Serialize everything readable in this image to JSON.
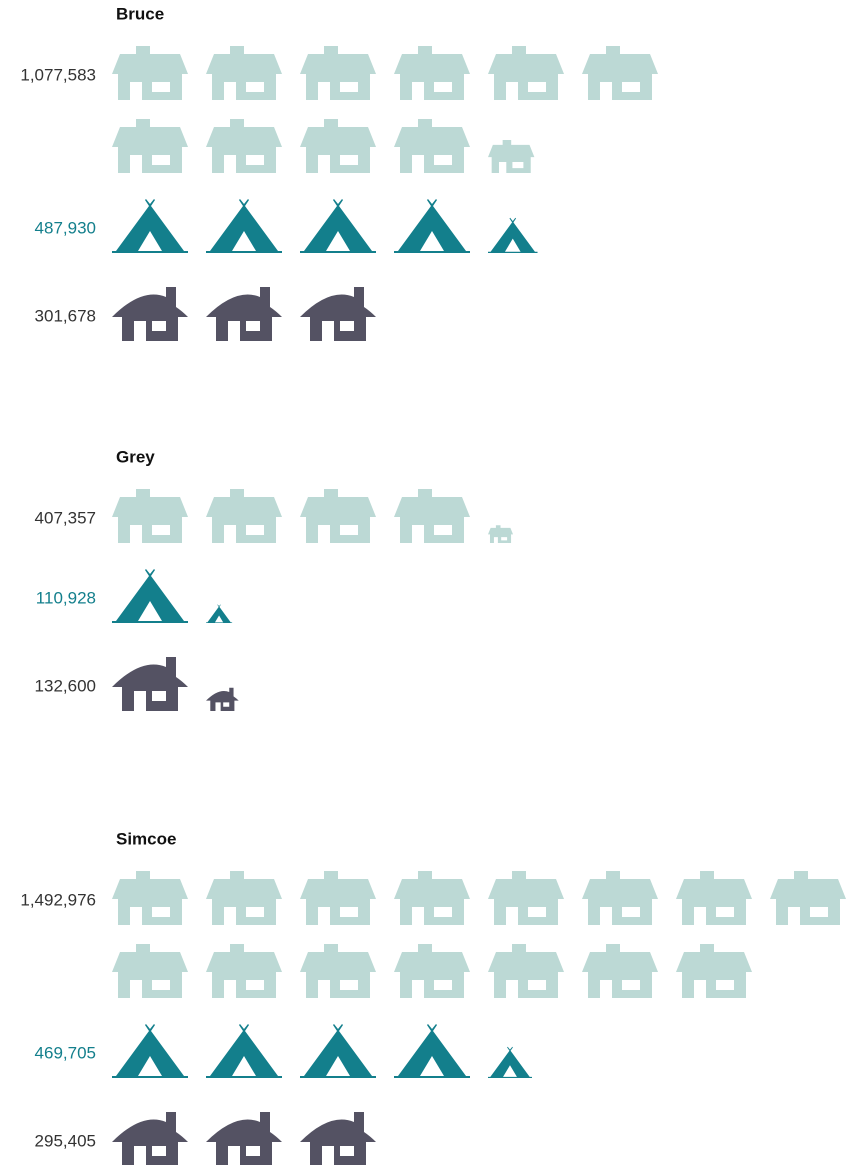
{
  "chart_data": [
    {
      "type": "pictogram",
      "title": "Bruce",
      "values": [
        1077583,
        487930,
        301678
      ],
      "value_labels": [
        "1,077,583",
        "487,930",
        "301,678"
      ],
      "colors": [
        "#bcd9d5",
        "#137f8c",
        "#545263"
      ],
      "label_colors": [
        "#333333",
        "#137f8c",
        "#333333"
      ]
    },
    {
      "type": "pictogram",
      "title": "Grey",
      "values": [
        407357,
        110928,
        132600
      ],
      "value_labels": [
        "407,357",
        "110,928",
        "132,600"
      ],
      "colors": [
        "#bcd9d5",
        "#137f8c",
        "#545263"
      ],
      "label_colors": [
        "#333333",
        "#137f8c",
        "#333333"
      ]
    },
    {
      "type": "pictogram",
      "title": "Simcoe",
      "values": [
        1492976,
        469705,
        295405
      ],
      "value_labels": [
        "1,492,976",
        "469,705",
        "295,405"
      ],
      "colors": [
        "#bcd9d5",
        "#137f8c",
        "#545263"
      ],
      "label_colors": [
        "#333333",
        "#137f8c",
        "#333333"
      ]
    }
  ]
}
